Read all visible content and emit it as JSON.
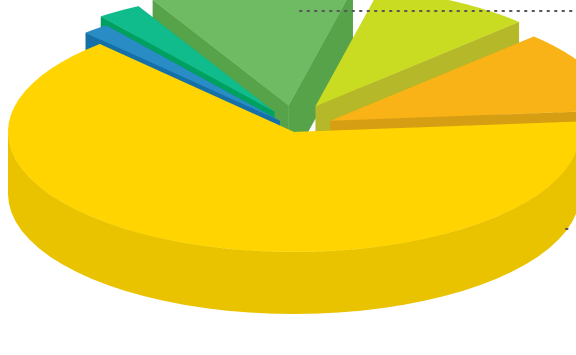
{
  "chart_data": {
    "type": "pie",
    "style": "3d-exploded",
    "title": "",
    "legend": "none",
    "slices": [
      {
        "name": "",
        "value": 64.5,
        "color": "#FFD400",
        "side_color": "#E9C200",
        "rim_color": "#E5C100"
      },
      {
        "name": "",
        "value": 1.5,
        "color": "#2A8CC4",
        "side_color": "#1A74B0",
        "rim_color": "#1670A8"
      },
      {
        "name": "",
        "value": 2.5,
        "color": "#10BC8C",
        "side_color": "#00A86A",
        "rim_color": "#00A060"
      },
      {
        "name": "",
        "value": 11.5,
        "color": "#6EBB63",
        "side_color": "#5AA45A",
        "rim_color": "#56A34A"
      },
      {
        "name": "",
        "value": 9.0,
        "color": "#CADC22",
        "side_color": "#C2C72F",
        "rim_color": "#B5B828"
      },
      {
        "name": "",
        "value": 11.0,
        "color": "#F9B316",
        "side_color": "#E1A816",
        "rim_color": "#D69E12"
      }
    ],
    "leader_line": {
      "color": "#555555",
      "style": "dotted"
    }
  }
}
